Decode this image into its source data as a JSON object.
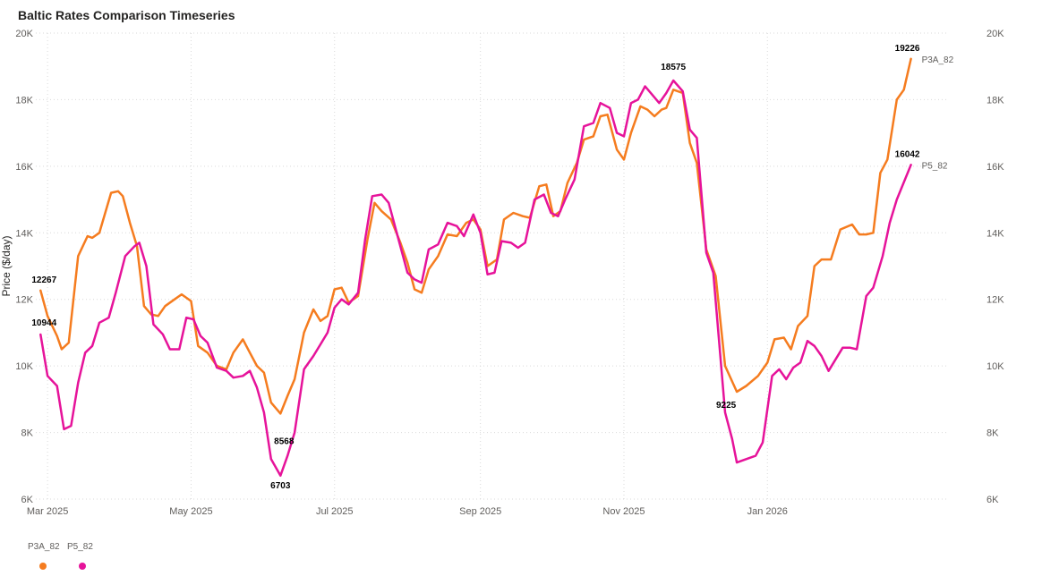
{
  "title": "Baltic Rates Comparison Timeseries",
  "legend": [
    {
      "name": "P3A_82",
      "color": "#f57c1f"
    },
    {
      "name": "P5_82",
      "color": "#e6139a"
    }
  ],
  "chart_data": {
    "type": "line",
    "title": "Baltic Rates Comparison Timeseries",
    "ylabel": "Price ($/day)",
    "xlabel": "",
    "ylim": [
      6000,
      20000
    ],
    "yticks": [
      6000,
      8000,
      10000,
      12000,
      14000,
      16000,
      18000,
      20000
    ],
    "ytick_labels": [
      "6K",
      "8K",
      "10K",
      "12K",
      "14K",
      "16K",
      "18K",
      "20K"
    ],
    "xlim": [
      "2025-02-24",
      "2026-03-18"
    ],
    "xticks": [
      "2025-03-01",
      "2025-05-01",
      "2025-07-01",
      "2025-09-01",
      "2025-11-01",
      "2026-01-01"
    ],
    "xtick_labels": [
      "Mar 2025",
      "May 2025",
      "Jul 2025",
      "Sep 2025",
      "Nov 2025",
      "Jan 2026"
    ],
    "grid": true,
    "legend_position": "bottom-left",
    "series": [
      {
        "name": "P3A_82",
        "color": "#f57c1f",
        "points": [
          [
            "2025-02-26",
            12267
          ],
          [
            "2025-03-01",
            11500
          ],
          [
            "2025-03-05",
            10900
          ],
          [
            "2025-03-07",
            10500
          ],
          [
            "2025-03-10",
            10700
          ],
          [
            "2025-03-14",
            13300
          ],
          [
            "2025-03-18",
            13900
          ],
          [
            "2025-03-20",
            13850
          ],
          [
            "2025-03-23",
            14000
          ],
          [
            "2025-03-28",
            15200
          ],
          [
            "2025-03-31",
            15250
          ],
          [
            "2025-04-02",
            15100
          ],
          [
            "2025-04-05",
            14300
          ],
          [
            "2025-04-08",
            13600
          ],
          [
            "2025-04-11",
            11800
          ],
          [
            "2025-04-14",
            11550
          ],
          [
            "2025-04-17",
            11500
          ],
          [
            "2025-04-20",
            11800
          ],
          [
            "2025-04-24",
            12000
          ],
          [
            "2025-04-27",
            12150
          ],
          [
            "2025-05-01",
            11950
          ],
          [
            "2025-05-04",
            10600
          ],
          [
            "2025-05-08",
            10400
          ],
          [
            "2025-05-12",
            10000
          ],
          [
            "2025-05-16",
            9900
          ],
          [
            "2025-05-19",
            10400
          ],
          [
            "2025-05-23",
            10800
          ],
          [
            "2025-05-26",
            10400
          ],
          [
            "2025-05-29",
            10000
          ],
          [
            "2025-06-01",
            9800
          ],
          [
            "2025-06-04",
            8900
          ],
          [
            "2025-06-08",
            8568
          ],
          [
            "2025-06-11",
            9100
          ],
          [
            "2025-06-14",
            9600
          ],
          [
            "2025-06-18",
            11000
          ],
          [
            "2025-06-22",
            11700
          ],
          [
            "2025-06-25",
            11350
          ],
          [
            "2025-06-28",
            11500
          ],
          [
            "2025-07-01",
            12300
          ],
          [
            "2025-07-04",
            12350
          ],
          [
            "2025-07-07",
            11900
          ],
          [
            "2025-07-11",
            12100
          ],
          [
            "2025-07-15",
            13800
          ],
          [
            "2025-07-18",
            14900
          ],
          [
            "2025-07-21",
            14650
          ],
          [
            "2025-07-25",
            14400
          ],
          [
            "2025-07-29",
            13700
          ],
          [
            "2025-08-01",
            13100
          ],
          [
            "2025-08-04",
            12300
          ],
          [
            "2025-08-07",
            12200
          ],
          [
            "2025-08-10",
            12900
          ],
          [
            "2025-08-14",
            13300
          ],
          [
            "2025-08-18",
            13950
          ],
          [
            "2025-08-22",
            13900
          ],
          [
            "2025-08-26",
            14300
          ],
          [
            "2025-08-29",
            14400
          ],
          [
            "2025-09-01",
            14100
          ],
          [
            "2025-09-04",
            13000
          ],
          [
            "2025-09-08",
            13200
          ],
          [
            "2025-09-11",
            14400
          ],
          [
            "2025-09-15",
            14600
          ],
          [
            "2025-09-19",
            14500
          ],
          [
            "2025-09-22",
            14450
          ],
          [
            "2025-09-26",
            15400
          ],
          [
            "2025-09-29",
            15450
          ],
          [
            "2025-10-02",
            14500
          ],
          [
            "2025-10-05",
            14650
          ],
          [
            "2025-10-08",
            15500
          ],
          [
            "2025-10-12",
            16100
          ],
          [
            "2025-10-15",
            16800
          ],
          [
            "2025-10-19",
            16900
          ],
          [
            "2025-10-22",
            17500
          ],
          [
            "2025-10-25",
            17550
          ],
          [
            "2025-10-29",
            16500
          ],
          [
            "2025-11-01",
            16200
          ],
          [
            "2025-11-04",
            17000
          ],
          [
            "2025-11-08",
            17800
          ],
          [
            "2025-11-11",
            17700
          ],
          [
            "2025-11-14",
            17500
          ],
          [
            "2025-11-17",
            17700
          ],
          [
            "2025-11-19",
            17750
          ],
          [
            "2025-11-22",
            18300
          ],
          [
            "2025-11-26",
            18200
          ],
          [
            "2025-11-29",
            16700
          ],
          [
            "2025-12-02",
            16100
          ],
          [
            "2025-12-06",
            13500
          ],
          [
            "2025-12-10",
            12700
          ],
          [
            "2025-12-14",
            10000
          ],
          [
            "2025-12-19",
            9225
          ],
          [
            "2025-12-23",
            9400
          ],
          [
            "2025-12-28",
            9700
          ],
          [
            "2026-01-01",
            10100
          ],
          [
            "2026-01-04",
            10800
          ],
          [
            "2026-01-08",
            10850
          ],
          [
            "2026-01-11",
            10500
          ],
          [
            "2026-01-14",
            11200
          ],
          [
            "2026-01-18",
            11500
          ],
          [
            "2026-01-21",
            13000
          ],
          [
            "2026-01-24",
            13200
          ],
          [
            "2026-01-28",
            13200
          ],
          [
            "2026-02-01",
            14100
          ],
          [
            "2026-02-06",
            14250
          ],
          [
            "2026-02-09",
            13950
          ],
          [
            "2026-02-12",
            13950
          ],
          [
            "2026-02-15",
            14000
          ],
          [
            "2026-02-18",
            15800
          ],
          [
            "2026-02-21",
            16200
          ],
          [
            "2026-02-25",
            18000
          ],
          [
            "2026-02-28",
            18300
          ],
          [
            "2026-03-03",
            19226
          ]
        ]
      },
      {
        "name": "P5_82",
        "color": "#e6139a",
        "points": [
          [
            "2025-02-26",
            10944
          ],
          [
            "2025-03-01",
            9700
          ],
          [
            "2025-03-05",
            9400
          ],
          [
            "2025-03-08",
            8100
          ],
          [
            "2025-03-11",
            8200
          ],
          [
            "2025-03-14",
            9500
          ],
          [
            "2025-03-17",
            10400
          ],
          [
            "2025-03-20",
            10600
          ],
          [
            "2025-03-23",
            11300
          ],
          [
            "2025-03-27",
            11450
          ],
          [
            "2025-03-30",
            12200
          ],
          [
            "2025-04-03",
            13300
          ],
          [
            "2025-04-07",
            13600
          ],
          [
            "2025-04-09",
            13700
          ],
          [
            "2025-04-12",
            13000
          ],
          [
            "2025-04-15",
            11250
          ],
          [
            "2025-04-19",
            10950
          ],
          [
            "2025-04-22",
            10500
          ],
          [
            "2025-04-26",
            10500
          ],
          [
            "2025-04-29",
            11450
          ],
          [
            "2025-05-02",
            11400
          ],
          [
            "2025-05-05",
            10900
          ],
          [
            "2025-05-08",
            10700
          ],
          [
            "2025-05-12",
            9950
          ],
          [
            "2025-05-16",
            9850
          ],
          [
            "2025-05-19",
            9650
          ],
          [
            "2025-05-23",
            9700
          ],
          [
            "2025-05-26",
            9850
          ],
          [
            "2025-05-29",
            9350
          ],
          [
            "2025-06-01",
            8600
          ],
          [
            "2025-06-04",
            7200
          ],
          [
            "2025-06-08",
            6703
          ],
          [
            "2025-06-11",
            7300
          ],
          [
            "2025-06-14",
            8000
          ],
          [
            "2025-06-18",
            9900
          ],
          [
            "2025-06-22",
            10300
          ],
          [
            "2025-06-25",
            10650
          ],
          [
            "2025-06-28",
            11000
          ],
          [
            "2025-07-01",
            11750
          ],
          [
            "2025-07-04",
            12000
          ],
          [
            "2025-07-07",
            11850
          ],
          [
            "2025-07-11",
            12200
          ],
          [
            "2025-07-14",
            13800
          ],
          [
            "2025-07-17",
            15100
          ],
          [
            "2025-07-21",
            15150
          ],
          [
            "2025-07-24",
            14900
          ],
          [
            "2025-07-28",
            13850
          ],
          [
            "2025-08-01",
            12800
          ],
          [
            "2025-08-04",
            12600
          ],
          [
            "2025-08-07",
            12500
          ],
          [
            "2025-08-10",
            13500
          ],
          [
            "2025-08-14",
            13650
          ],
          [
            "2025-08-18",
            14300
          ],
          [
            "2025-08-22",
            14200
          ],
          [
            "2025-08-25",
            13900
          ],
          [
            "2025-08-29",
            14550
          ],
          [
            "2025-09-01",
            14000
          ],
          [
            "2025-09-04",
            12750
          ],
          [
            "2025-09-07",
            12800
          ],
          [
            "2025-09-10",
            13750
          ],
          [
            "2025-09-14",
            13700
          ],
          [
            "2025-09-17",
            13550
          ],
          [
            "2025-09-20",
            13700
          ],
          [
            "2025-09-24",
            15000
          ],
          [
            "2025-09-28",
            15150
          ],
          [
            "2025-10-01",
            14600
          ],
          [
            "2025-10-04",
            14500
          ],
          [
            "2025-10-07",
            15000
          ],
          [
            "2025-10-11",
            15600
          ],
          [
            "2025-10-15",
            17200
          ],
          [
            "2025-10-19",
            17300
          ],
          [
            "2025-10-22",
            17900
          ],
          [
            "2025-10-26",
            17750
          ],
          [
            "2025-10-29",
            17000
          ],
          [
            "2025-11-01",
            16900
          ],
          [
            "2025-11-04",
            17900
          ],
          [
            "2025-11-07",
            18000
          ],
          [
            "2025-11-10",
            18400
          ],
          [
            "2025-11-13",
            18150
          ],
          [
            "2025-11-16",
            17900
          ],
          [
            "2025-11-19",
            18200
          ],
          [
            "2025-11-22",
            18575
          ],
          [
            "2025-11-26",
            18250
          ],
          [
            "2025-11-29",
            17100
          ],
          [
            "2025-12-02",
            16850
          ],
          [
            "2025-12-06",
            13400
          ],
          [
            "2025-12-09",
            12800
          ],
          [
            "2025-12-14",
            8600
          ],
          [
            "2025-12-17",
            7800
          ],
          [
            "2025-12-19",
            7100
          ],
          [
            "2025-12-23",
            7200
          ],
          [
            "2025-12-27",
            7300
          ],
          [
            "2025-12-30",
            7700
          ],
          [
            "2026-01-03",
            9700
          ],
          [
            "2026-01-06",
            9900
          ],
          [
            "2026-01-09",
            9600
          ],
          [
            "2026-01-12",
            9950
          ],
          [
            "2026-01-15",
            10100
          ],
          [
            "2026-01-18",
            10750
          ],
          [
            "2026-01-21",
            10600
          ],
          [
            "2026-01-24",
            10300
          ],
          [
            "2026-01-27",
            9850
          ],
          [
            "2026-01-30",
            10200
          ],
          [
            "2026-02-02",
            10550
          ],
          [
            "2026-02-05",
            10550
          ],
          [
            "2026-02-08",
            10500
          ],
          [
            "2026-02-12",
            12100
          ],
          [
            "2026-02-15",
            12350
          ],
          [
            "2026-02-19",
            13300
          ],
          [
            "2026-02-22",
            14300
          ],
          [
            "2026-02-25",
            15000
          ],
          [
            "2026-03-03",
            16042
          ]
        ]
      }
    ],
    "annotations": [
      {
        "series": "P3A_82",
        "x": "2025-02-26",
        "value": 12267,
        "text": "12267"
      },
      {
        "series": "P5_82",
        "x": "2025-02-26",
        "value": 10944,
        "text": "10944"
      },
      {
        "series": "P3A_82",
        "x": "2025-06-08",
        "value": 8568,
        "text": "8568"
      },
      {
        "series": "P5_82",
        "x": "2025-06-08",
        "value": 6703,
        "text": "6703"
      },
      {
        "series": "P5_82",
        "x": "2025-11-22",
        "value": 18575,
        "text": "18575"
      },
      {
        "series": "P3A_82",
        "x": "2025-12-19",
        "value": 9225,
        "text": "9225"
      },
      {
        "series": "P3A_82",
        "x": "2026-03-03",
        "value": 19226,
        "text": "19226"
      },
      {
        "series": "P5_82",
        "x": "2026-03-03",
        "value": 16042,
        "text": "16042"
      }
    ],
    "end_labels": [
      {
        "series": "P3A_82",
        "text": "P3A_82"
      },
      {
        "series": "P5_82",
        "text": "P5_82"
      }
    ]
  }
}
